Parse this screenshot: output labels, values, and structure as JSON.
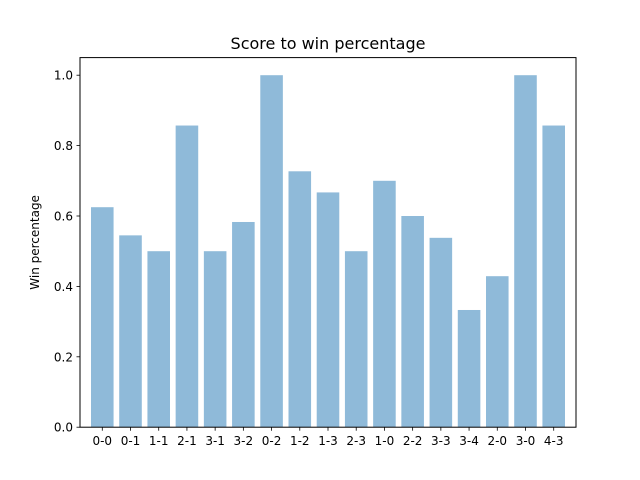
{
  "chart_data": {
    "type": "bar",
    "title": "Score to win percentage",
    "xlabel": "",
    "ylabel": "Win percentage",
    "categories": [
      "0-0",
      "0-1",
      "1-1",
      "2-1",
      "3-1",
      "3-2",
      "0-2",
      "1-2",
      "1-3",
      "2-3",
      "1-0",
      "2-2",
      "3-3",
      "3-4",
      "2-0",
      "3-0",
      "4-3"
    ],
    "values": [
      0.625,
      0.545,
      0.5,
      0.857,
      0.5,
      0.583,
      1.0,
      0.727,
      0.667,
      0.5,
      0.7,
      0.6,
      0.538,
      0.333,
      0.429,
      1.0,
      0.857
    ],
    "ylim": [
      0,
      1.05
    ],
    "yticks": [
      0.0,
      0.2,
      0.4,
      0.6,
      0.8,
      1.0
    ],
    "ytick_labels": [
      "0.0",
      "0.2",
      "0.4",
      "0.6",
      "0.8",
      "1.0"
    ],
    "grid": false,
    "colors": {
      "bar": "#8fbad9",
      "axis": "#000000",
      "background": "#ffffff"
    }
  }
}
